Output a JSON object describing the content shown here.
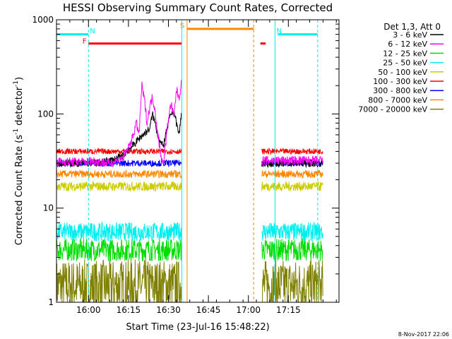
{
  "chart_data": {
    "type": "line",
    "title": "HESSI Observing Summary Count Rates, Corrected",
    "xlabel": "Start Time (23-Jul-16 15:48:22)",
    "ylabel_main": "Corrected Count Rate (s",
    "ylabel_sup1": "-1",
    "ylabel_mid": " detector",
    "ylabel_sup2": "-1",
    "ylabel_end": ")",
    "yscale": "log",
    "ylim": [
      1,
      1000
    ],
    "xlim_minutes": [
      0,
      106
    ],
    "x_ticks": [
      {
        "min": 12,
        "label": "16:00"
      },
      {
        "min": 27,
        "label": "16:15"
      },
      {
        "min": 42,
        "label": "16:30"
      },
      {
        "min": 57,
        "label": "16:45"
      },
      {
        "min": 72,
        "label": "17:00"
      },
      {
        "min": 87,
        "label": "17:15"
      }
    ],
    "y_ticks": [
      {
        "v": 1,
        "label": "1"
      },
      {
        "v": 10,
        "label": "10"
      },
      {
        "v": 100,
        "label": "100"
      },
      {
        "v": 1000,
        "label": "1000"
      }
    ],
    "legend_header": "Det 1,3, Att 0",
    "series": [
      {
        "name": "3 - 6 keV",
        "color": "#000000"
      },
      {
        "name": "6 - 12 keV",
        "color": "#ff00ff"
      },
      {
        "name": "12 - 25 keV",
        "color": "#00dd00"
      },
      {
        "name": "25 - 50 keV",
        "color": "#00eeee"
      },
      {
        "name": "50 - 100 keV",
        "color": "#cccc00"
      },
      {
        "name": "100 - 300 keV",
        "color": "#ff0000"
      },
      {
        "name": "300 - 800 keV",
        "color": "#0000ff"
      },
      {
        "name": "800 - 7000 keV",
        "color": "#ff8800"
      },
      {
        "name": "7000 - 20000 keV",
        "color": "#808000"
      }
    ],
    "segments": [
      [
        0,
        47
      ],
      [
        77,
        100
      ]
    ],
    "levels": {
      "100 - 300 keV": 40,
      "300 - 800 keV": 30,
      "800 - 7000 keV": 23,
      "50 - 100 keV": 17,
      "25 - 50 keV": 5.6,
      "12 - 25 keV": 3.6,
      "7000 - 20000 keV": 1.5
    },
    "flare_3_6_keV": [
      [
        12,
        30
      ],
      [
        18,
        31
      ],
      [
        22,
        33
      ],
      [
        25,
        36
      ],
      [
        27,
        42
      ],
      [
        29,
        47
      ],
      [
        31,
        55
      ],
      [
        33,
        62
      ],
      [
        35,
        70
      ],
      [
        36,
        100
      ],
      [
        37,
        80
      ],
      [
        38,
        60
      ],
      [
        39,
        50
      ],
      [
        40,
        45
      ],
      [
        41,
        60
      ],
      [
        42,
        80
      ],
      [
        43,
        100
      ],
      [
        44,
        110
      ],
      [
        45,
        80
      ],
      [
        46,
        60
      ],
      [
        47,
        110
      ]
    ],
    "flare_6_12_keV": [
      [
        12,
        32
      ],
      [
        20,
        30
      ],
      [
        25,
        34
      ],
      [
        28,
        50
      ],
      [
        30,
        80
      ],
      [
        31,
        60
      ],
      [
        32,
        200
      ],
      [
        33,
        140
      ],
      [
        34,
        80
      ],
      [
        35,
        120
      ],
      [
        36,
        150
      ],
      [
        37,
        110
      ],
      [
        38,
        60
      ],
      [
        39,
        40
      ],
      [
        40,
        28
      ],
      [
        41,
        50
      ],
      [
        42,
        90
      ],
      [
        43,
        130
      ],
      [
        44,
        90
      ],
      [
        45,
        180
      ],
      [
        46,
        150
      ],
      [
        47,
        220
      ]
    ],
    "annotations": {
      "N_markers": [
        "N",
        "N"
      ],
      "F_marker": "F",
      "S_marker": "S"
    },
    "grid": false,
    "legend_position": "right"
  },
  "footer": {
    "timestamp": "8-Nov-2017 22:06"
  }
}
